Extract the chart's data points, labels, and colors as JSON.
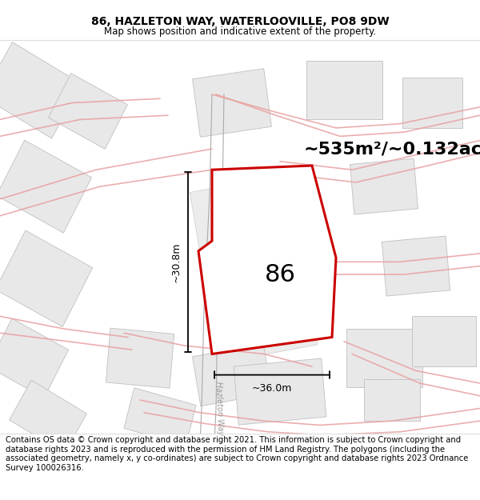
{
  "title": "86, HAZLETON WAY, WATERLOOVILLE, PO8 9DW",
  "subtitle": "Map shows position and indicative extent of the property.",
  "footer": "Contains OS data © Crown copyright and database right 2021. This information is subject to Crown copyright and database rights 2023 and is reproduced with the permission of HM Land Registry. The polygons (including the associated geometry, namely x, y co-ordinates) are subject to Crown copyright and database rights 2023 Ordnance Survey 100026316.",
  "area_label": "~535m²/~0.132ac.",
  "number_label": "86",
  "width_label": "~36.0m",
  "height_label": "~30.8m",
  "road_label_upper": "Hazleton Way",
  "road_label_lower": "Hazleton Way",
  "boundary_color": "#cc0000",
  "road_line_color": "#e8a0a0",
  "road_gray_color": "#b0b0b0",
  "building_fill": "#e8e8e8",
  "building_edge": "#c0c0c0",
  "bg_color": "#ffffff",
  "title_fontsize": 10,
  "subtitle_fontsize": 8.5,
  "footer_fontsize": 7.2,
  "area_fontsize": 16,
  "number_fontsize": 22,
  "meas_fontsize": 9
}
